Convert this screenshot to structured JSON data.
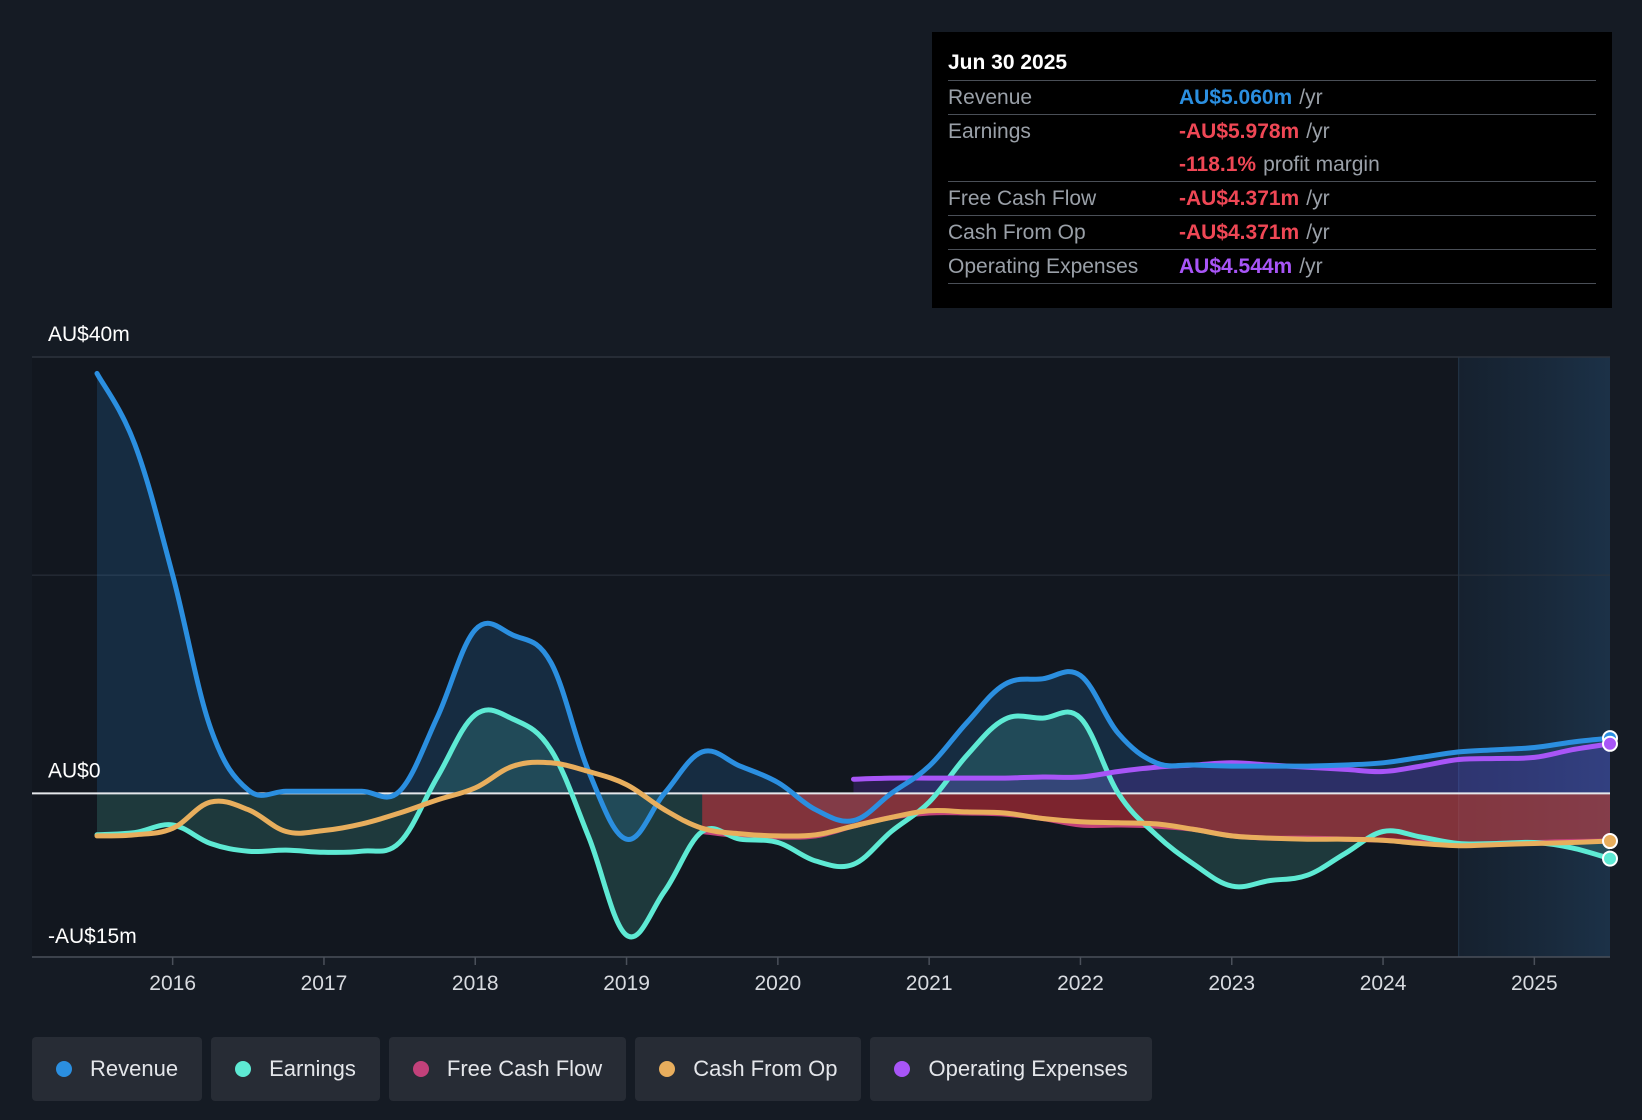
{
  "tooltip": {
    "date": "Jun 30 2025",
    "rows": [
      {
        "label": "Revenue",
        "value": "AU$5.060m",
        "unit": "/yr",
        "color": "#2b8fe0"
      },
      {
        "label": "Earnings",
        "value": "-AU$5.978m",
        "unit": "/yr",
        "color": "#ef4755"
      },
      {
        "label": "",
        "value": "-118.1%",
        "unit": "profit margin",
        "color": "#ef4755"
      },
      {
        "label": "Free Cash Flow",
        "value": "-AU$4.371m",
        "unit": "/yr",
        "color": "#ef4755"
      },
      {
        "label": "Cash From Op",
        "value": "-AU$4.371m",
        "unit": "/yr",
        "color": "#ef4755"
      },
      {
        "label": "Operating Expenses",
        "value": "AU$4.544m",
        "unit": "/yr",
        "color": "#a855f7"
      }
    ]
  },
  "legend": [
    {
      "label": "Revenue",
      "color": "#2b8fe0"
    },
    {
      "label": "Earnings",
      "color": "#5eead4"
    },
    {
      "label": "Free Cash Flow",
      "color": "#c2417a"
    },
    {
      "label": "Cash From Op",
      "color": "#e8ae5d"
    },
    {
      "label": "Operating Expenses",
      "color": "#a855f7"
    }
  ],
  "chart_data": {
    "type": "line",
    "title": "",
    "xlabel": "",
    "ylabel": "",
    "ylim": [
      -15,
      40
    ],
    "xlim": [
      2015.5,
      2025.5
    ],
    "y_tick_labels": [
      {
        "value": 40,
        "label": "AU$40m"
      },
      {
        "value": 0,
        "label": "AU$0"
      },
      {
        "value": -15,
        "label": "-AU$15m"
      }
    ],
    "y_gridlines": [
      40,
      20,
      0,
      -15
    ],
    "x_ticks": [
      2016,
      2017,
      2018,
      2019,
      2020,
      2021,
      2022,
      2023,
      2024,
      2025
    ],
    "forecast_shade_start": 2024.5,
    "grid": true,
    "legend_position": "bottom",
    "series": [
      {
        "name": "Revenue",
        "color": "#2b8fe0",
        "fill": true,
        "x": [
          2015.5,
          2015.75,
          2016.0,
          2016.25,
          2016.5,
          2016.75,
          2017.0,
          2017.25,
          2017.5,
          2017.75,
          2018.0,
          2018.25,
          2018.5,
          2018.75,
          2019.0,
          2019.25,
          2019.5,
          2019.75,
          2020.0,
          2020.25,
          2020.5,
          2020.75,
          2021.0,
          2021.25,
          2021.5,
          2021.75,
          2022.0,
          2022.25,
          2022.5,
          2022.75,
          2023.0,
          2023.25,
          2023.5,
          2023.75,
          2024.0,
          2024.25,
          2024.5,
          2024.75,
          2025.0,
          2025.25,
          2025.5
        ],
        "values": [
          38.5,
          32.0,
          20.0,
          6.0,
          0.3,
          0.2,
          0.2,
          0.2,
          0.2,
          7.0,
          15.0,
          14.5,
          12.0,
          2.0,
          -4.2,
          0.0,
          3.8,
          2.5,
          1.0,
          -1.5,
          -2.5,
          0.0,
          2.5,
          6.5,
          10.0,
          10.5,
          10.8,
          5.5,
          2.8,
          2.6,
          2.5,
          2.5,
          2.5,
          2.6,
          2.8,
          3.3,
          3.8,
          4.0,
          4.2,
          4.7,
          5.06
        ]
      },
      {
        "name": "Earnings",
        "color": "#5eead4",
        "fill": true,
        "x": [
          2015.5,
          2015.75,
          2016.0,
          2016.25,
          2016.5,
          2016.75,
          2017.0,
          2017.25,
          2017.5,
          2017.75,
          2018.0,
          2018.25,
          2018.5,
          2018.75,
          2019.0,
          2019.25,
          2019.5,
          2019.75,
          2020.0,
          2020.25,
          2020.5,
          2020.75,
          2021.0,
          2021.25,
          2021.5,
          2021.75,
          2022.0,
          2022.25,
          2022.5,
          2022.75,
          2023.0,
          2023.25,
          2023.5,
          2023.75,
          2024.0,
          2024.25,
          2024.5,
          2024.75,
          2025.0,
          2025.25,
          2025.5
        ],
        "values": [
          -3.8,
          -3.6,
          -2.9,
          -4.6,
          -5.3,
          -5.2,
          -5.4,
          -5.3,
          -4.5,
          1.5,
          7.2,
          6.8,
          4.0,
          -4.0,
          -13.0,
          -9.0,
          -3.5,
          -4.2,
          -4.5,
          -6.2,
          -6.5,
          -3.5,
          -0.8,
          3.5,
          6.8,
          6.9,
          6.9,
          0.0,
          -3.8,
          -6.5,
          -8.5,
          -8.0,
          -7.5,
          -5.5,
          -3.5,
          -4.0,
          -4.6,
          -4.6,
          -4.5,
          -5.0,
          -5.978
        ]
      },
      {
        "name": "Free Cash Flow",
        "color": "#c2417a",
        "fill": true,
        "x": [
          2019.5,
          2019.75,
          2020.0,
          2020.25,
          2020.5,
          2020.75,
          2021.0,
          2021.25,
          2021.5,
          2021.75,
          2022.0,
          2022.25,
          2022.5,
          2022.75,
          2023.0,
          2023.25,
          2023.5,
          2023.75,
          2024.0,
          2024.25,
          2024.5,
          2024.75,
          2025.0,
          2025.25,
          2025.5
        ],
        "values": [
          -3.5,
          -3.9,
          -4.0,
          -3.9,
          -3.0,
          -2.2,
          -1.8,
          -1.8,
          -1.9,
          -2.3,
          -2.9,
          -2.9,
          -3.0,
          -3.3,
          -3.9,
          -4.1,
          -4.1,
          -4.2,
          -4.3,
          -4.5,
          -4.7,
          -4.6,
          -4.5,
          -4.4,
          -4.371
        ]
      },
      {
        "name": "Cash From Op",
        "color": "#e8ae5d",
        "fill": false,
        "x": [
          2015.5,
          2015.75,
          2016.0,
          2016.25,
          2016.5,
          2016.75,
          2017.0,
          2017.25,
          2017.5,
          2017.75,
          2018.0,
          2018.25,
          2018.5,
          2018.75,
          2019.0,
          2019.25,
          2019.5,
          2019.75,
          2020.0,
          2020.25,
          2020.5,
          2020.75,
          2021.0,
          2021.25,
          2021.5,
          2021.75,
          2022.0,
          2022.25,
          2022.5,
          2022.75,
          2023.0,
          2023.25,
          2023.5,
          2023.75,
          2024.0,
          2024.25,
          2024.5,
          2024.75,
          2025.0,
          2025.25,
          2025.5
        ],
        "values": [
          -3.9,
          -3.8,
          -3.2,
          -0.8,
          -1.5,
          -3.5,
          -3.4,
          -2.8,
          -1.8,
          -0.6,
          0.5,
          2.5,
          2.8,
          2.0,
          0.8,
          -1.5,
          -3.2,
          -3.7,
          -3.9,
          -3.8,
          -3.0,
          -2.2,
          -1.6,
          -1.7,
          -1.8,
          -2.3,
          -2.6,
          -2.7,
          -2.8,
          -3.3,
          -3.9,
          -4.1,
          -4.2,
          -4.2,
          -4.3,
          -4.6,
          -4.8,
          -4.7,
          -4.6,
          -4.5,
          -4.371
        ]
      },
      {
        "name": "Operating Expenses",
        "color": "#a855f7",
        "fill": true,
        "x": [
          2020.5,
          2020.75,
          2021.0,
          2021.25,
          2021.5,
          2021.75,
          2022.0,
          2022.25,
          2022.5,
          2022.75,
          2023.0,
          2023.25,
          2023.5,
          2023.75,
          2024.0,
          2024.25,
          2024.5,
          2024.75,
          2025.0,
          2025.25,
          2025.5
        ],
        "values": [
          1.3,
          1.4,
          1.4,
          1.4,
          1.4,
          1.5,
          1.5,
          2.0,
          2.4,
          2.6,
          2.8,
          2.6,
          2.4,
          2.2,
          2.0,
          2.5,
          3.1,
          3.2,
          3.3,
          4.0,
          4.544
        ]
      }
    ]
  }
}
